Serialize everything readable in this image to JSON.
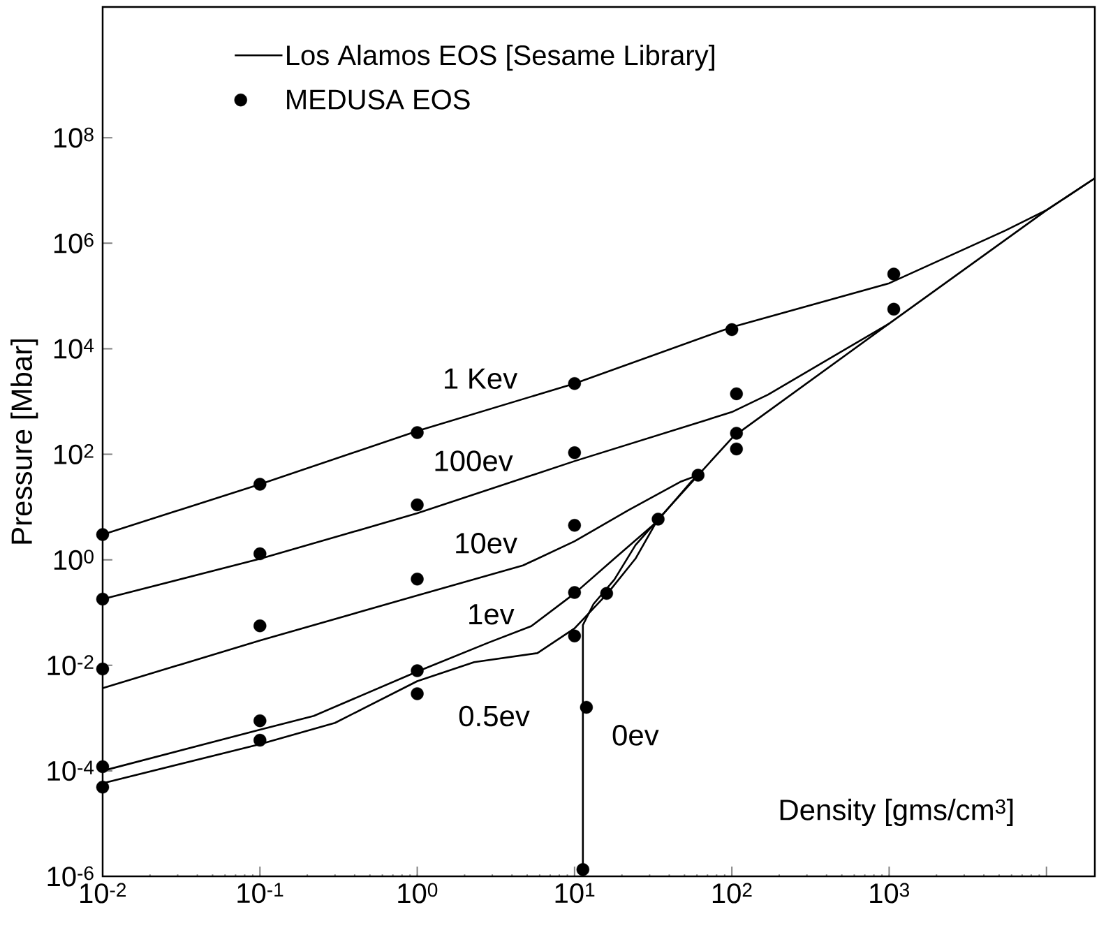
{
  "chart_data": {
    "type": "line",
    "xlabel": "Density [gms/cm$^{3}$]",
    "ylabel": "Pressure [Mbar]",
    "log": "xy",
    "legend": "top left",
    "xlim": [
      0.01,
      20300
    ],
    "ylim": [
      1e-06,
      30000000000.0
    ],
    "xticks": [
      {
        "value": 0.01,
        "label": "10$^{-2}$"
      },
      {
        "value": 0.1,
        "label": "10$^{-1}$"
      },
      {
        "value": 1,
        "label": "10$^{0}$"
      },
      {
        "value": 10,
        "label": "10$^{1}$"
      },
      {
        "value": 100,
        "label": "10$^{2}$"
      },
      {
        "value": 1000,
        "label": "10$^{3}$"
      },
      {
        "value": 10000,
        "label": null
      }
    ],
    "yticks": [
      {
        "value": 1e-06,
        "label": "10$^{-6}$"
      },
      {
        "value": 0.0001,
        "label": "10$^{-4}$"
      },
      {
        "value": 0.01,
        "label": "10$^{-2}$"
      },
      {
        "value": 1,
        "label": "10$^{0}$"
      },
      {
        "value": 100,
        "label": "10$^{2}$"
      },
      {
        "value": 10000,
        "label": "10$^{4}$"
      },
      {
        "value": 1000000,
        "label": "10$^{6}$"
      },
      {
        "value": 100000000,
        "label": "10$^{8}$"
      }
    ],
    "series": [
      {
        "name": "Los Alamos EOS [Sesame Library]",
        "color": "#000000",
        "x": [
          0.01,
          0.1,
          1,
          10,
          100,
          1000,
          5480,
          10100,
          20300
        ],
        "values": [
          3.0,
          27,
          275,
          2190,
          25700,
          174000,
          1740000,
          4300000,
          17000000
        ]
      },
      {
        "color": "#000000",
        "x": [
          0.01,
          0.1,
          1,
          10,
          100,
          170,
          1000
        ],
        "values": [
          0.18,
          1.04,
          7.6,
          74,
          630,
          1350,
          30000
        ]
      },
      {
        "color": "#000000",
        "x": [
          0.01,
          0.1,
          1,
          4.7,
          10,
          22,
          47,
          61
        ],
        "values": [
          0.0037,
          0.0295,
          0.21,
          0.78,
          2.24,
          8.7,
          30,
          40
        ]
      },
      {
        "color": "#000000",
        "x": [
          0.01,
          0.1,
          0.22,
          1,
          2.85,
          5.3,
          10,
          17.9,
          33,
          55,
          61
        ],
        "values": [
          0.0001,
          0.0006,
          0.0011,
          0.0076,
          0.027,
          0.055,
          0.23,
          1.05,
          5.1,
          30,
          40
        ]
      },
      {
        "color": "#000000",
        "x": [
          0.01,
          0.1,
          0.3,
          1,
          2.3,
          5.8,
          10,
          16.2,
          24.4,
          33
        ],
        "values": [
          5.8e-05,
          0.00032,
          0.00081,
          0.005,
          0.0115,
          0.017,
          0.05,
          0.23,
          1.05,
          5.1
        ]
      },
      {
        "color": "#000000",
        "x": [
          11.3,
          11.3,
          13.2,
          17.9,
          24.4,
          35,
          61,
          102,
          1000,
          10100,
          20300
        ],
        "values": [
          1e-06,
          0.058,
          0.145,
          0.42,
          1.9,
          6.4,
          40,
          215,
          30000,
          4300000,
          17000000
        ]
      },
      {
        "name": "MEDUSA EOS",
        "type": "scatter",
        "color": "#000000",
        "x": [
          0.01,
          0.1,
          1,
          10,
          100,
          1070,
          0.01,
          0.1,
          1,
          10,
          107,
          1070,
          0.01,
          0.1,
          1,
          10,
          107,
          0.01,
          0.1,
          1,
          10,
          34,
          61,
          0.01,
          0.1,
          1,
          10,
          16,
          11.3,
          11.9,
          107
        ],
        "values": [
          3.0,
          27,
          257,
          2190,
          23000,
          260000,
          0.18,
          1.3,
          11,
          107,
          1400,
          56000,
          0.0085,
          0.056,
          0.43,
          4.5,
          126,
          0.00012,
          0.00089,
          0.0079,
          0.24,
          5.9,
          40,
          4.9e-05,
          0.00038,
          0.0029,
          0.036,
          0.23,
          1.35e-06,
          0.0016,
          250
        ]
      }
    ],
    "annotations": [
      {
        "text": "1 Kev",
        "x": 1,
        "y": 275
      },
      {
        "text": "100ev",
        "x": 1,
        "y": 7.6
      },
      {
        "text": "10ev",
        "x": 1,
        "y": 0.21
      },
      {
        "text": "1ev",
        "x": 10,
        "y": 0.23
      },
      {
        "text": "0.5ev",
        "x": 1,
        "y": 0.005
      },
      {
        "text": "0ev",
        "x": 11.9,
        "y": 0.0016
      }
    ]
  }
}
